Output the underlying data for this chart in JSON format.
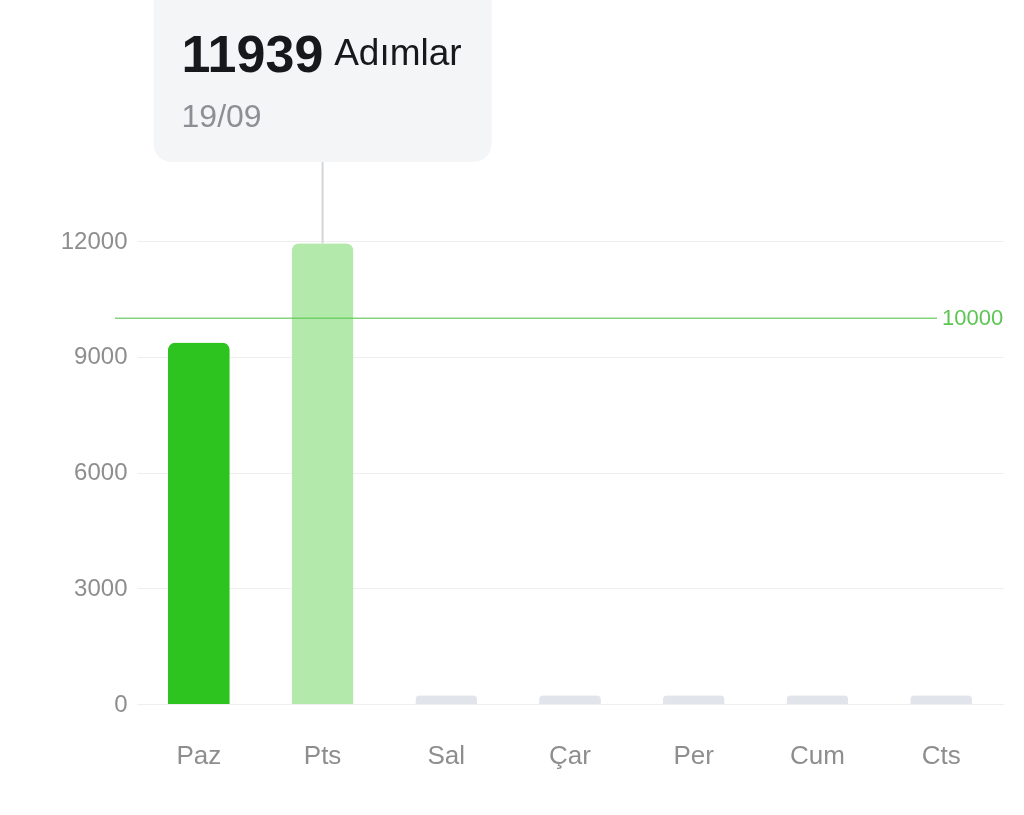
{
  "chart_data": {
    "type": "bar",
    "categories": [
      "Paz",
      "Pts",
      "Sal",
      "Çar",
      "Per",
      "Cum",
      "Cts"
    ],
    "values": [
      9370,
      11939,
      230,
      230,
      230,
      230,
      230
    ],
    "colors": [
      "#2dc41f",
      "#b3eaab",
      "#e1e4ea",
      "#e1e4ea",
      "#e1e4ea",
      "#e1e4ea",
      "#e1e4ea"
    ],
    "ylim": [
      0,
      12000
    ],
    "yticks": [
      0,
      3000,
      6000,
      9000,
      12000
    ],
    "grid": "y",
    "ref_lines": [
      {
        "axis": "y",
        "value": 10000,
        "label": "10000",
        "color": "#5cc653"
      }
    ],
    "annotations": [
      {
        "text": "11939",
        "x": "Pts",
        "y": 11939
      },
      "Adımlar",
      "19/09"
    ]
  }
}
